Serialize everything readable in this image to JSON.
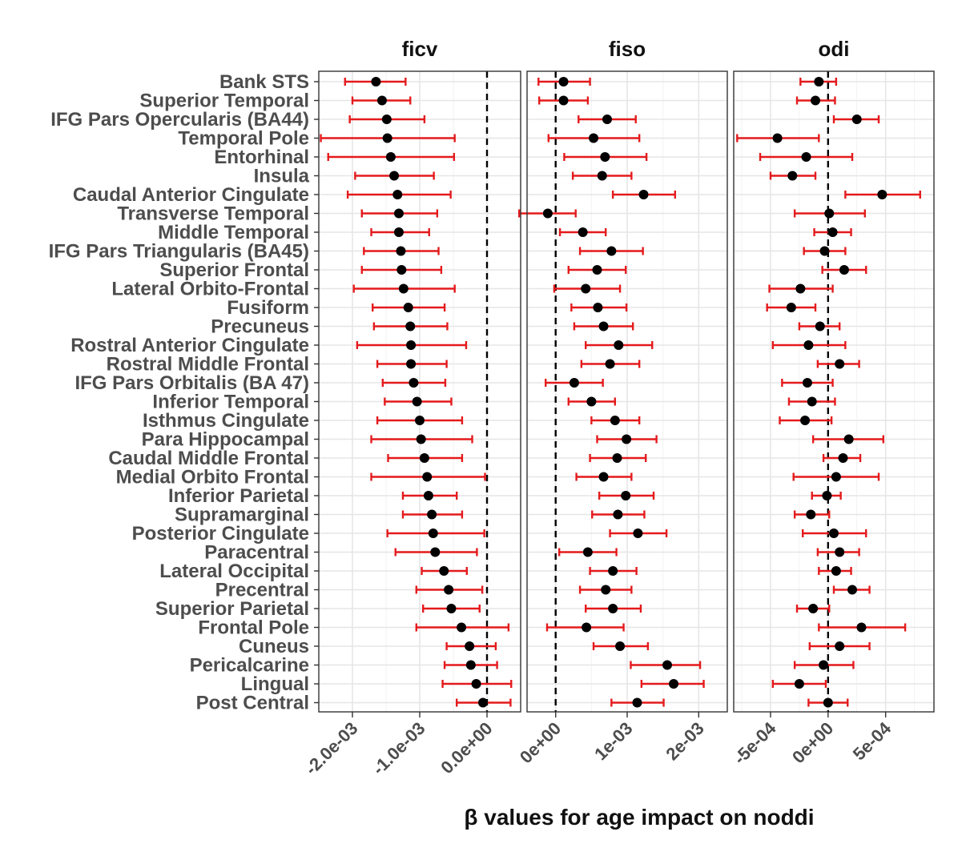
{
  "chart_data": {
    "type": "forest",
    "xlabel": "β values for age impact on noddi",
    "ylabel": "",
    "regions": [
      "Bank STS",
      "Superior Temporal",
      "IFG Pars Opercularis (BA44)",
      "Temporal Pole",
      "Entorhinal",
      "Insula",
      "Caudal Anterior Cingulate",
      "Transverse Temporal",
      "Middle Temporal",
      "IFG Pars Triangularis (BA45)",
      "Superior Frontal",
      "Lateral Orbito-Frontal",
      "Fusiform",
      "Precuneus",
      "Rostral Anterior Cingulate",
      "Rostral Middle Frontal",
      "IFG Pars Orbitalis (BA 47)",
      "Inferior Temporal",
      "Isthmus Cingulate",
      "Para Hippocampal",
      "Caudal Middle Frontal",
      "Medial Orbito Frontal",
      "Inferior Parietal",
      "Supramarginal",
      "Posterior Cingulate",
      "Paracentral",
      "Lateral Occipital",
      "Precentral",
      "Superior Parietal",
      "Frontal Pole",
      "Cuneus",
      "Pericalcarine",
      "Lingual",
      "Post Central"
    ],
    "point_color": "#000000",
    "errorbar_color": "#e41a1c",
    "reference_line": 0,
    "facets": [
      {
        "name": "ficv",
        "xlim": [
          -0.0025,
          0.0005
        ],
        "ticks": [
          -0.002,
          -0.001,
          0.0
        ],
        "tick_labels": [
          "-2.0e-03",
          "-1.0e-03",
          "0.0e+00"
        ],
        "estimate": [
          -0.00165,
          -0.00156,
          -0.00149,
          -0.00148,
          -0.00143,
          -0.00138,
          -0.00133,
          -0.00131,
          -0.00131,
          -0.00128,
          -0.00127,
          -0.00124,
          -0.00117,
          -0.00114,
          -0.00113,
          -0.00113,
          -0.00109,
          -0.00104,
          -0.001,
          -0.00098,
          -0.00093,
          -0.00089,
          -0.00087,
          -0.00082,
          -0.0008,
          -0.00077,
          -0.00064,
          -0.00057,
          -0.00053,
          -0.00038,
          -0.00026,
          -0.00024,
          -0.00016,
          -6e-05
        ],
        "lower": [
          -0.00211,
          -0.002,
          -0.00204,
          -0.00247,
          -0.00236,
          -0.00196,
          -0.00207,
          -0.00186,
          -0.00172,
          -0.00183,
          -0.00186,
          -0.00198,
          -0.0017,
          -0.00168,
          -0.00193,
          -0.00163,
          -0.00155,
          -0.00152,
          -0.00163,
          -0.00172,
          -0.00147,
          -0.00172,
          -0.00125,
          -0.00125,
          -0.00148,
          -0.00136,
          -0.00097,
          -0.00105,
          -0.00095,
          -0.00105,
          -0.0006,
          -0.00063,
          -0.00066,
          -0.00045
        ],
        "upper": [
          -0.00121,
          -0.00114,
          -0.00093,
          -0.00048,
          -0.00049,
          -0.00079,
          -0.00054,
          -0.00074,
          -0.00086,
          -0.00072,
          -0.00068,
          -0.00048,
          -0.00063,
          -0.00059,
          -0.00031,
          -0.0006,
          -0.00062,
          -0.00053,
          -0.00037,
          -0.00022,
          -0.00037,
          -3e-05,
          -0.00045,
          -0.00037,
          -4e-05,
          -0.00015,
          -0.0003,
          -7e-05,
          -0.00011,
          0.00032,
          0.00013,
          0.00015,
          0.00036,
          0.00035
        ]
      },
      {
        "name": "fiso",
        "xlim": [
          -0.0004,
          0.0024
        ],
        "ticks": [
          0.0,
          0.001,
          0.002
        ],
        "tick_labels": [
          "0e+00",
          "1e-03",
          "2e-03"
        ],
        "estimate": [
          0.00011,
          0.00011,
          0.00072,
          0.00053,
          0.00069,
          0.00065,
          0.00123,
          -0.00011,
          0.00038,
          0.00078,
          0.00058,
          0.00042,
          0.00059,
          0.00067,
          0.00088,
          0.00076,
          0.00026,
          0.0005,
          0.00083,
          0.00099,
          0.00086,
          0.00067,
          0.00098,
          0.00087,
          0.00115,
          0.00045,
          0.0008,
          0.0007,
          0.0008,
          0.00043,
          0.0009,
          0.00156,
          0.00165,
          0.00114
        ],
        "lower": [
          -0.00024,
          -0.00023,
          0.00032,
          -0.0001,
          0.00012,
          0.00024,
          0.0008,
          -0.00051,
          6e-05,
          0.00034,
          0.00018,
          -2e-05,
          0.00022,
          0.00026,
          0.00042,
          0.00036,
          -0.00014,
          0.00018,
          0.0005,
          0.00058,
          0.00048,
          0.00029,
          0.00061,
          0.00051,
          0.00076,
          5e-05,
          0.00048,
          0.00034,
          0.00042,
          -0.00012,
          0.00053,
          0.00105,
          0.0012,
          0.00078
        ],
        "upper": [
          0.00048,
          0.00045,
          0.00112,
          0.00117,
          0.00127,
          0.00106,
          0.00167,
          0.00028,
          0.0007,
          0.00122,
          0.00098,
          0.0009,
          0.00099,
          0.00108,
          0.00135,
          0.00117,
          0.00066,
          0.00083,
          0.00117,
          0.00141,
          0.00126,
          0.00106,
          0.00137,
          0.00124,
          0.00155,
          0.00085,
          0.00113,
          0.00106,
          0.00119,
          0.00095,
          0.00129,
          0.00202,
          0.00207,
          0.00151
        ],
        "note": ""
      },
      {
        "name": "odi",
        "xlim": [
          -0.00082,
          0.00092
        ],
        "ticks": [
          -0.0005,
          0.0,
          0.0005
        ],
        "tick_labels": [
          "-5e-04",
          "0e+00",
          "5e-04"
        ],
        "estimate": [
          -8e-05,
          -0.00011,
          0.00025,
          -0.00044,
          -0.00019,
          -0.00031,
          0.00047,
          1e-05,
          4e-05,
          -3e-05,
          0.00014,
          -0.00024,
          -0.00032,
          -7e-05,
          -0.00017,
          0.0001,
          -0.00018,
          -0.00014,
          -0.0002,
          0.00018,
          0.00013,
          7e-05,
          -1e-05,
          -0.00015,
          5e-05,
          0.0001,
          7e-05,
          0.00021,
          -0.00013,
          0.00029,
          0.0001,
          -4e-05,
          -0.00025,
          0.0
        ],
        "lower": [
          -0.00024,
          -0.00027,
          5e-05,
          -0.00079,
          -0.00059,
          -0.0005,
          0.00015,
          -0.00029,
          -0.00012,
          -0.00021,
          -5e-05,
          -0.00051,
          -0.00053,
          -0.00025,
          -0.00048,
          -9e-05,
          -0.0004,
          -0.00034,
          -0.00042,
          -0.00013,
          -4e-05,
          -0.0003,
          -0.00014,
          -0.00029,
          -0.00022,
          -9e-05,
          -8e-05,
          5e-05,
          -0.00027,
          -8e-05,
          -0.00016,
          -0.00029,
          -0.00048,
          -0.00017
        ],
        "upper": [
          7e-05,
          6e-05,
          0.00044,
          -8e-05,
          0.00021,
          -0.00011,
          0.0008,
          0.00032,
          0.0002,
          0.00015,
          0.00033,
          4e-05,
          -0.00011,
          0.0001,
          0.00015,
          0.00027,
          4e-05,
          6e-05,
          3e-05,
          0.00048,
          0.00028,
          0.00044,
          0.00011,
          1e-05,
          0.00033,
          0.00027,
          0.0002,
          0.00036,
          1e-05,
          0.00067,
          0.00036,
          0.00022,
          -2e-05,
          0.00017
        ]
      }
    ]
  }
}
